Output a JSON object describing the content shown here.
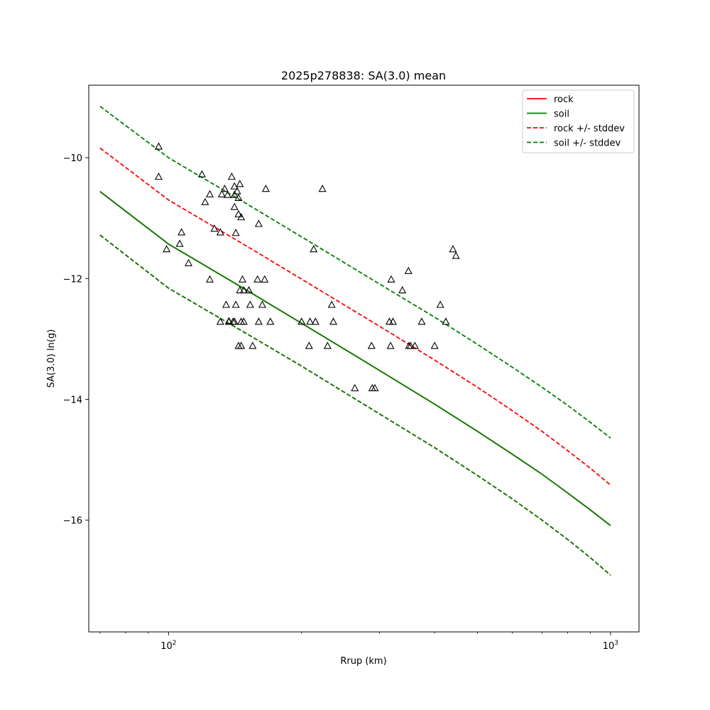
{
  "chart_data": {
    "type": "scatter",
    "title": "2025p278838: SA(3.0) mean",
    "xlabel": "Rrup (km)",
    "ylabel": "SA(3.0) ln(g)",
    "xscale": "log",
    "xlim": [
      66,
      1160
    ],
    "ylim": [
      -17.85,
      -8.8
    ],
    "grid": false,
    "legend_position": "top-right",
    "x_ticks": [
      {
        "value": 100,
        "base": "10",
        "exp": "2"
      },
      {
        "value": 1000,
        "base": "10",
        "exp": "3"
      }
    ],
    "y_ticks": [
      {
        "value": -10,
        "label": "−10"
      },
      {
        "value": -12,
        "label": "−12"
      },
      {
        "value": -14,
        "label": "−14"
      },
      {
        "value": -16,
        "label": "−16"
      }
    ],
    "legend": [
      {
        "label": "rock",
        "color": "#ff0000",
        "dash": "solid"
      },
      {
        "label": "soil",
        "color": "#008000",
        "dash": "solid"
      },
      {
        "label": "rock +/- stddev",
        "color": "#ff0000",
        "dash": "dashed"
      },
      {
        "label": "soil +/- stddev",
        "color": "#008000",
        "dash": "dashed"
      }
    ],
    "series": [
      {
        "name": "rock",
        "color": "#ff0000",
        "dash": "solid",
        "x": [
          70,
          100,
          150,
          200,
          300,
          400,
          500,
          600,
          700,
          800,
          900,
          1000
        ],
        "y": [
          -10.56,
          -11.43,
          -12.19,
          -12.74,
          -13.52,
          -14.08,
          -14.53,
          -14.91,
          -15.24,
          -15.55,
          -15.83,
          -16.09
        ]
      },
      {
        "name": "rock",
        "color": "#ff0000",
        "dash": "dashed",
        "x": [
          70,
          100,
          150,
          200,
          300,
          400,
          500,
          600,
          700,
          800,
          900,
          1000
        ],
        "y": [
          -9.84,
          -10.7,
          -11.46,
          -12.01,
          -12.79,
          -13.35,
          -13.8,
          -14.19,
          -14.53,
          -14.85,
          -15.14,
          -15.42
        ]
      },
      {
        "name": "rock",
        "color": "#ff0000",
        "dash": "dashed",
        "x": [
          70,
          100,
          150,
          200,
          300,
          400,
          500,
          600,
          700,
          800,
          900,
          1000
        ],
        "y": [
          -11.28,
          -12.16,
          -12.91,
          -13.45,
          -14.24,
          -14.8,
          -15.26,
          -15.65,
          -16.0,
          -16.32,
          -16.62,
          -16.91
        ]
      },
      {
        "name": "soil",
        "color": "#008000",
        "dash": "solid",
        "x": [
          70,
          100,
          150,
          200,
          300,
          400,
          500,
          600,
          700,
          800,
          900,
          1000
        ],
        "y": [
          -10.56,
          -11.43,
          -12.19,
          -12.74,
          -13.52,
          -14.08,
          -14.53,
          -14.91,
          -15.24,
          -15.55,
          -15.83,
          -16.09
        ]
      },
      {
        "name": "soil",
        "color": "#008000",
        "dash": "dashed",
        "x": [
          70,
          100,
          150,
          200,
          300,
          400,
          500,
          600,
          700,
          800,
          900,
          1000
        ],
        "y": [
          -9.15,
          -10.0,
          -10.76,
          -11.31,
          -12.09,
          -12.64,
          -13.09,
          -13.47,
          -13.8,
          -14.1,
          -14.38,
          -14.64
        ]
      },
      {
        "name": "soil",
        "color": "#008000",
        "dash": "dashed",
        "x": [
          70,
          100,
          150,
          200,
          300,
          400,
          500,
          600,
          700,
          800,
          900,
          1000
        ],
        "y": [
          -11.28,
          -12.16,
          -12.91,
          -13.45,
          -14.24,
          -14.8,
          -15.26,
          -15.65,
          -16.0,
          -16.32,
          -16.62,
          -16.91
        ]
      }
    ],
    "points": {
      "marker": "triangle-open",
      "color": "#000000",
      "x": [
        95,
        95,
        99,
        106,
        107,
        111,
        119,
        121,
        124,
        124,
        127,
        131,
        131,
        132,
        134,
        135,
        136,
        137,
        137,
        139,
        140,
        141,
        141,
        141,
        142,
        142,
        143,
        144,
        144,
        144,
        145,
        145,
        146,
        146,
        146,
        147,
        148,
        148,
        152,
        153,
        155,
        159,
        160,
        163,
        165,
        166,
        170,
        200,
        208,
        209,
        213,
        215,
        223,
        229,
        234,
        236,
        264,
        288,
        289,
        293,
        316,
        318,
        319,
        322,
        338,
        349,
        350,
        353,
        361,
        374,
        400,
        412,
        424,
        440,
        447,
        160,
        141
      ],
      "y": [
        -9.82,
        -10.32,
        -11.52,
        -11.43,
        -11.24,
        -11.75,
        -10.28,
        -10.74,
        -12.02,
        -10.61,
        -11.18,
        -11.24,
        -12.72,
        -10.61,
        -10.52,
        -12.44,
        -10.62,
        -12.71,
        -12.72,
        -10.32,
        -12.72,
        -10.48,
        -10.82,
        -10.62,
        -11.25,
        -12.44,
        -10.56,
        -13.12,
        -10.67,
        -10.94,
        -12.2,
        -10.44,
        -12.72,
        -13.12,
        -10.99,
        -12.02,
        -12.2,
        -12.72,
        -12.2,
        -12.44,
        -13.12,
        -12.02,
        -12.72,
        -12.44,
        -12.02,
        -10.52,
        -12.72,
        -12.72,
        -13.12,
        -12.72,
        -11.52,
        -12.72,
        -10.52,
        -13.12,
        -12.44,
        -12.72,
        -13.82,
        -13.12,
        -13.82,
        -13.82,
        -12.72,
        -13.12,
        -12.02,
        -12.72,
        -12.2,
        -11.88,
        -13.12,
        -13.12,
        -13.12,
        -12.72,
        -13.12,
        -12.44,
        -12.72,
        -11.52,
        -11.63,
        -11.1,
        -12.72
      ]
    }
  }
}
